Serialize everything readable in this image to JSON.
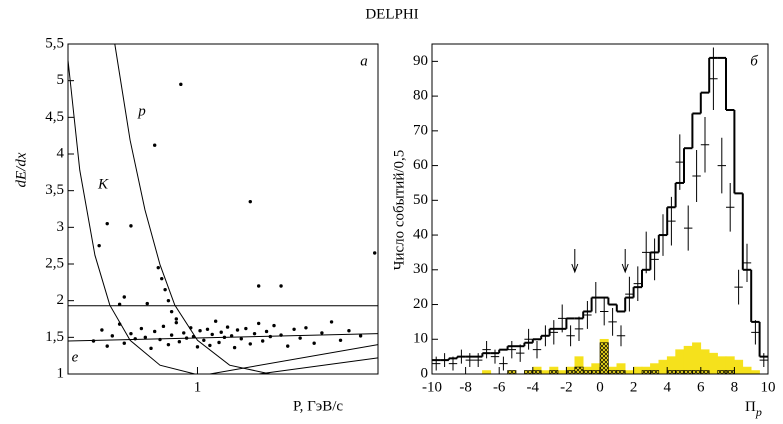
{
  "title": "DELPHI",
  "chart_data": [
    {
      "type": "scatter",
      "panel": "а",
      "ylabel": "dE/dx",
      "xlabel": "P, ГэВ/c",
      "xscale": "log",
      "xlim": [
        0.37,
        4
      ],
      "xticks": [
        1
      ],
      "ylim": [
        1,
        5.5
      ],
      "yticks": [
        1,
        {
          "value": 1.5,
          "label": "1,5"
        },
        2,
        {
          "value": 2.5,
          "label": "2,5"
        },
        3,
        {
          "value": 3.5,
          "label": "3,5"
        },
        4,
        {
          "value": 4.5,
          "label": "4,5"
        },
        5,
        {
          "value": 5.5,
          "label": "5,5"
        }
      ],
      "color": "#000000",
      "x": [
        0.45,
        0.48,
        0.5,
        0.52,
        0.55,
        0.57,
        0.6,
        0.62,
        0.65,
        0.67,
        0.7,
        0.72,
        0.75,
        0.77,
        0.8,
        0.82,
        0.85,
        0.87,
        0.9,
        0.92,
        0.95,
        0.97,
        1.0,
        1.02,
        1.05,
        1.08,
        1.1,
        1.12,
        1.15,
        1.18,
        1.2,
        1.23,
        1.26,
        1.3,
        1.33,
        1.36,
        1.4,
        1.45,
        1.5,
        1.55,
        1.6,
        1.65,
        1.7,
        1.75,
        1.8,
        1.9,
        2.0,
        2.1,
        2.2,
        2.3,
        2.45,
        2.6,
        2.8,
        3.0,
        3.2,
        3.5,
        0.8,
        0.82,
        0.78,
        0.76,
        0.85,
        0.74,
        0.55,
        0.57,
        0.88,
        0.72,
        1.5,
        3.9,
        1.9,
        0.5,
        0.47,
        0.6,
        1.6,
        0.68
      ],
      "y": [
        1.45,
        1.6,
        1.38,
        1.52,
        1.68,
        1.42,
        1.55,
        1.48,
        1.62,
        1.5,
        1.35,
        1.58,
        1.47,
        1.65,
        1.4,
        1.53,
        1.7,
        1.44,
        1.56,
        1.49,
        1.63,
        1.51,
        1.37,
        1.59,
        1.46,
        1.61,
        1.39,
        1.54,
        1.72,
        1.43,
        1.57,
        1.5,
        1.64,
        1.52,
        1.36,
        1.6,
        1.48,
        1.62,
        1.41,
        1.55,
        1.69,
        1.45,
        1.58,
        1.51,
        1.66,
        1.53,
        1.38,
        1.61,
        1.49,
        1.63,
        1.42,
        1.56,
        1.71,
        1.46,
        1.59,
        1.52,
        2.0,
        1.85,
        2.15,
        2.3,
        1.75,
        2.45,
        1.95,
        2.05,
        4.95,
        4.12,
        3.35,
        2.65,
        2.2,
        3.05,
        2.75,
        3.02,
        2.2,
        1.96
      ],
      "curves": [
        {
          "name": "p",
          "x": [
            0.53,
            0.596,
            0.668,
            0.75,
            0.84,
            1.0,
            1.28,
            1.75
          ],
          "y": [
            5.5,
            4.19,
            3.24,
            2.49,
            1.94,
            1.46,
            1.12,
            1.0
          ]
        },
        {
          "name": "K",
          "x": [
            0.37,
            0.405,
            0.455,
            0.51,
            0.596,
            0.75,
            0.98
          ],
          "y": [
            5.28,
            3.78,
            2.62,
            1.94,
            1.46,
            1.12,
            1.0
          ]
        },
        {
          "name": "e",
          "x": [
            0.37,
            4
          ],
          "y": [
            1.45,
            1.55
          ]
        },
        {
          "x": [
            0.37,
            4
          ],
          "y": [
            1.93,
            1.93
          ]
        },
        {
          "x": [
            1.1,
            4
          ],
          "y": [
            1.0,
            1.4
          ]
        },
        {
          "x": [
            1.6,
            4
          ],
          "y": [
            1.0,
            1.22
          ]
        }
      ]
    },
    {
      "type": "histogram",
      "panel": "б",
      "ylabel": "Число событий/0,5",
      "xlabel": {
        "symbol": "Π",
        "subscript": "p"
      },
      "xlim": [
        -10,
        10
      ],
      "xticks": [
        -10,
        -8,
        -6,
        -4,
        -2,
        0,
        2,
        4,
        6,
        8,
        10
      ],
      "ylim": [
        0,
        95
      ],
      "yticks": [
        0,
        10,
        20,
        30,
        40,
        50,
        60,
        70,
        80,
        90
      ],
      "bins": [
        -10,
        -9.5,
        -9,
        -8.5,
        -8,
        -7.5,
        -7,
        -6.5,
        -6,
        -5.5,
        -5,
        -4.5,
        -4,
        -3.5,
        -3,
        -2.5,
        -2,
        -1.5,
        -1,
        -0.5,
        0,
        0.5,
        1,
        1.5,
        2,
        2.5,
        3,
        3.5,
        4,
        4.5,
        5,
        5.5,
        6,
        6.5,
        7,
        7.5,
        8,
        8.5,
        9,
        9.5,
        10
      ],
      "series": [
        {
          "style": "filled",
          "color": "#f5e11c",
          "values": [
            0,
            0,
            0,
            0,
            0,
            0,
            1,
            0,
            0,
            1,
            0,
            1,
            2,
            1,
            2,
            1,
            2,
            5,
            2,
            3,
            10,
            2,
            3,
            1,
            2,
            2,
            3,
            4,
            5,
            7,
            8,
            9,
            7,
            6,
            5,
            5,
            4,
            2,
            1,
            0
          ]
        },
        {
          "style": "hatched",
          "color": "#000000",
          "values": [
            0,
            0,
            0,
            0,
            0,
            0,
            0,
            0,
            0,
            1,
            0,
            1,
            1,
            0,
            1,
            0,
            1,
            2,
            1,
            1,
            9,
            1,
            1,
            0,
            0,
            1,
            1,
            0,
            1,
            1,
            1,
            1,
            1,
            0,
            1,
            1,
            0,
            0,
            0,
            0
          ]
        },
        {
          "style": "step",
          "color": "#000000",
          "values": [
            4,
            4,
            4.5,
            5,
            5,
            5,
            6,
            6,
            7,
            8,
            8,
            9,
            10,
            11,
            13,
            13,
            16,
            16,
            18,
            22,
            22,
            20,
            18,
            22,
            25,
            30,
            35,
            40,
            48,
            55,
            65,
            75,
            81,
            91,
            91,
            76,
            52,
            30,
            15,
            5
          ]
        }
      ],
      "points": {
        "color": "#000000",
        "x": [
          -9.75,
          -9.25,
          -8.75,
          -8.25,
          -7.75,
          -7.25,
          -6.75,
          -6.25,
          -5.75,
          -5.25,
          -4.75,
          -4.25,
          -3.75,
          -3.25,
          -2.75,
          -2.25,
          -1.75,
          -1.25,
          -0.75,
          -0.25,
          0.25,
          0.75,
          1.25,
          1.75,
          2.25,
          2.75,
          3.25,
          3.75,
          4.25,
          4.75,
          5.25,
          5.75,
          6.25,
          6.75,
          7.25,
          7.75,
          8.25,
          8.75,
          9.25,
          9.75
        ],
        "values": [
          3,
          4,
          3,
          5,
          4,
          4,
          7,
          5,
          3,
          7,
          6,
          10,
          7,
          11,
          12,
          16,
          11,
          13,
          17,
          22,
          18,
          15,
          11,
          23,
          26,
          35,
          33,
          40,
          44,
          61,
          42,
          57,
          66,
          85,
          60,
          48,
          25,
          32,
          12,
          4
        ],
        "errors": [
          2,
          2,
          2,
          2,
          2,
          2,
          2.5,
          2,
          2,
          2.5,
          2.5,
          3,
          2.5,
          3,
          3.5,
          4,
          3,
          3.5,
          4,
          4.5,
          4,
          4,
          3,
          5,
          5,
          6,
          6,
          6,
          7,
          8,
          6.5,
          7.5,
          8,
          9,
          8,
          7,
          5,
          5.5,
          3.5,
          2
        ]
      },
      "cut_values": [
        -1.5,
        1.5
      ]
    }
  ]
}
